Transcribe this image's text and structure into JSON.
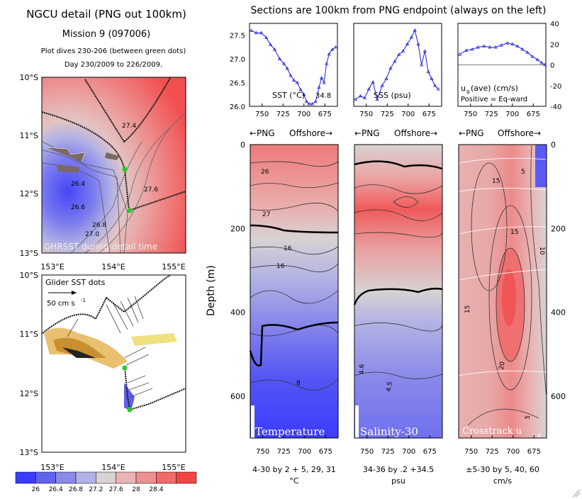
{
  "header": {
    "left_title": "NGCU detail (PNG out 100km)",
    "mission": "Mission 9 (097006)",
    "dives": "Plot dives 230-206 (between green dots)",
    "days": "Day 230/2009 to 226/2009.",
    "right_title": "Sections are 100km from PNG endpoint (always on the left)"
  },
  "map_top": {
    "label": "GHRSST during detail time",
    "lat_ticks": [
      "10°S",
      "11°S",
      "12°S",
      "13°S"
    ],
    "lon_ticks": [
      "153°E",
      "154°E",
      "155°E"
    ],
    "contour_labels": [
      "26.4",
      "26.6",
      "26.8",
      "27.0",
      "27.4",
      "27.6",
      "27.6"
    ]
  },
  "map_bottom": {
    "label": "Glider SST dots",
    "scale_label": "50 cm s",
    "scale_exp": "-1",
    "lat_ticks": [
      "10°S",
      "11°S",
      "12°S",
      "13°S"
    ],
    "lon_ticks": [
      "153°E",
      "154°E",
      "155°E"
    ]
  },
  "colorbar": {
    "ticks": [
      "26",
      "26.4",
      "26.8",
      "27.2",
      "27.6",
      "28",
      "28.4"
    ],
    "colors": [
      "#3a3aff",
      "#6262f0",
      "#8a8ae8",
      "#b2b2e6",
      "#d8d2d2",
      "#e8b4b4",
      "#ec9090",
      "#f06a6a",
      "#f54444"
    ]
  },
  "top_panels": [
    {
      "label": "SST (°C)",
      "extra": "34.8",
      "yticks": [
        "27.5",
        "27.0",
        "26.5",
        "26.0"
      ],
      "xticks": [
        "750",
        "725",
        "700",
        "675"
      ]
    },
    {
      "label": "SSS (psu)",
      "yticks": [],
      "xticks": [
        "750",
        "725",
        "700",
        "675"
      ]
    },
    {
      "label": "u",
      "sub": "g",
      "label2": "(ave) (cm/s)",
      "note": "Positive = Eq-ward",
      "yticks": [
        "40",
        "20",
        "0",
        "-20",
        "-40"
      ],
      "xticks": [
        "750",
        "725",
        "700",
        "675"
      ]
    }
  ],
  "section_header": {
    "png": "←PNG",
    "offshore": "Offshore→"
  },
  "sections": [
    {
      "label": "Temperature",
      "footer1": "4-30 by 2 + 5, 29, 31",
      "footer2": "°C",
      "contour_labels": [
        "26",
        "27",
        "16",
        "16",
        "8"
      ]
    },
    {
      "label": "Salinity-30",
      "footer1": "34-36 by .2 +34.5",
      "footer2": "psu",
      "contour_labels": [
        "4.6",
        "4.5"
      ]
    },
    {
      "label": "Crosstrack u",
      "sub": "g",
      "footer1": "±5-30 by 5, 40, 60",
      "footer2": "cm/s",
      "contour_labels": [
        "15",
        "5",
        "15",
        "10",
        "15",
        "20",
        "5",
        "5"
      ]
    }
  ],
  "depth_axis": {
    "label": "Depth (m)",
    "ticks_left": [
      "0",
      "200",
      "400",
      "600"
    ],
    "ticks_right": [
      "0",
      "200",
      "400",
      "600"
    ]
  },
  "section_xticks": [
    "750",
    "725",
    "700",
    "675"
  ],
  "chart_data": [
    {
      "type": "line",
      "title": "SST",
      "xlabel": "",
      "ylabel": "SST (°C)",
      "xlim": [
        765,
        660
      ],
      "ylim": [
        26.0,
        27.75
      ],
      "x": [
        763,
        757,
        751,
        745,
        740,
        735,
        729,
        724,
        720,
        716,
        712,
        708,
        704,
        700,
        697,
        694,
        690,
        686,
        682,
        679,
        676,
        673,
        670,
        666,
        662
      ],
      "values": [
        27.6,
        27.55,
        27.55,
        27.45,
        27.3,
        27.2,
        27.0,
        26.9,
        26.8,
        26.65,
        26.55,
        26.5,
        26.35,
        26.25,
        26.1,
        26.05,
        26.05,
        26.1,
        26.4,
        26.6,
        26.5,
        26.9,
        27.1,
        27.2,
        27.25
      ]
    },
    {
      "type": "line",
      "title": "SSS",
      "xlabel": "",
      "ylabel": "SSS (psu)",
      "xlim": [
        765,
        660
      ],
      "ylim": [
        34.2,
        35.4
      ],
      "x": [
        763,
        757,
        752,
        747,
        742,
        737,
        731,
        726,
        721,
        716,
        711,
        706,
        701,
        696,
        692,
        688,
        684,
        680,
        676,
        672,
        668,
        664
      ],
      "values": [
        34.3,
        34.35,
        34.32,
        34.45,
        34.55,
        34.3,
        34.5,
        34.6,
        34.75,
        34.85,
        34.95,
        35.0,
        35.1,
        35.2,
        35.3,
        35.1,
        34.8,
        35.0,
        34.7,
        34.6,
        34.5,
        34.45
      ]
    },
    {
      "type": "line",
      "title": "ug(ave)",
      "xlabel": "",
      "ylabel": "ug(ave) (cm/s)",
      "xlim": [
        765,
        660
      ],
      "ylim": [
        -40,
        40
      ],
      "x": [
        763,
        755,
        748,
        741,
        734,
        727,
        720,
        713,
        706,
        700,
        694,
        688,
        682,
        676,
        670,
        665,
        661
      ],
      "values": [
        10,
        14,
        15,
        17,
        18,
        17,
        17,
        19,
        21,
        20,
        18,
        15,
        12,
        8,
        5,
        2,
        0
      ]
    }
  ]
}
